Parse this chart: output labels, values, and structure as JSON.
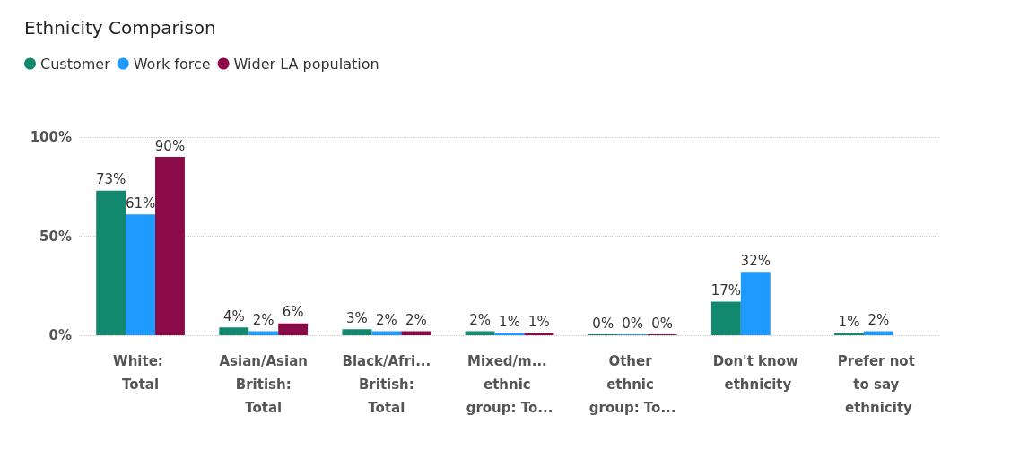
{
  "chart_data": {
    "type": "bar",
    "title": "Ethnicity Comparison",
    "categories": [
      "White: Total",
      "Asian/Asian British: Total",
      "Black/Afri... British: Total",
      "Mixed/m... ethnic group: To...",
      "Other ethnic group: To...",
      "Don't know ethnicity",
      "Prefer not to say ethnicity"
    ],
    "series": [
      {
        "name": "Customer",
        "color": "#12896f",
        "values": [
          73,
          4,
          3,
          2,
          0,
          17,
          1
        ],
        "value_labels": [
          "73%",
          "4%",
          "3%",
          "2%",
          "0%",
          "17%",
          "1%"
        ]
      },
      {
        "name": "Work force",
        "color": "#1f9bff",
        "values": [
          61,
          2,
          2,
          1,
          0,
          32,
          2
        ],
        "value_labels": [
          "61%",
          "2%",
          "2%",
          "1%",
          "0%",
          "32%",
          "2%"
        ]
      },
      {
        "name": "Wider LA population",
        "color": "#8a0b47",
        "values": [
          90,
          6,
          2,
          1,
          0,
          null,
          null
        ],
        "value_labels": [
          "90%",
          "6%",
          "2%",
          "1%",
          "0%",
          null,
          null
        ]
      }
    ],
    "ylim": [
      0,
      100
    ],
    "yticks": [
      {
        "value": 0,
        "label": "0%"
      },
      {
        "value": 50,
        "label": "50%"
      },
      {
        "value": 100,
        "label": "100%"
      }
    ],
    "grid": "y",
    "legend": "top left"
  }
}
